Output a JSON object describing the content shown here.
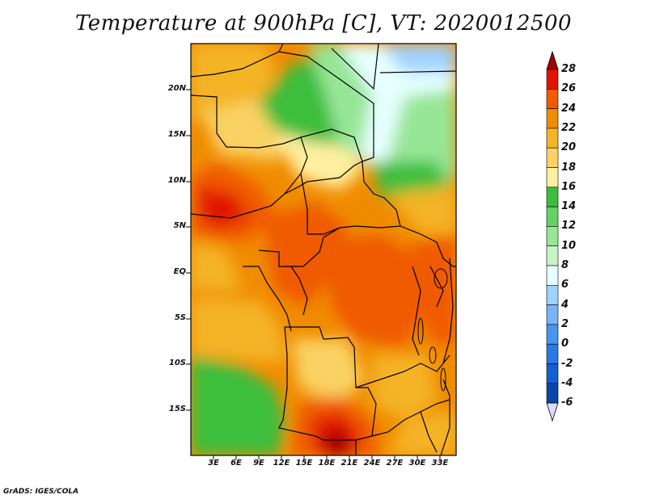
{
  "title": "Temperature at 900hPa [C], VT: 2020012500",
  "footer": "GrADS: IGES/COLA",
  "latitude_ticks": [
    "20N",
    "15N",
    "10N",
    "5N",
    "EQ",
    "5S",
    "10S",
    "15S"
  ],
  "longitude_ticks": [
    "3E",
    "6E",
    "9E",
    "12E",
    "15E",
    "18E",
    "21E",
    "24E",
    "27E",
    "30E",
    "33E"
  ],
  "colorbar": {
    "levels": [
      "28",
      "26",
      "24",
      "22",
      "20",
      "18",
      "16",
      "14",
      "12",
      "10",
      "8",
      "6",
      "4",
      "2",
      "0",
      "-2",
      "-4",
      "-6"
    ],
    "colors": [
      "#a00000",
      "#e11400",
      "#f05a00",
      "#f08c00",
      "#f4b428",
      "#fad264",
      "#fff0a0",
      "#3cbe3c",
      "#64d264",
      "#96e696",
      "#c8f5c8",
      "#e6ffff",
      "#a0d2ff",
      "#78b4fa",
      "#4696f0",
      "#2878e6",
      "#1460d2",
      "#0a46aa",
      "#000078"
    ]
  }
}
